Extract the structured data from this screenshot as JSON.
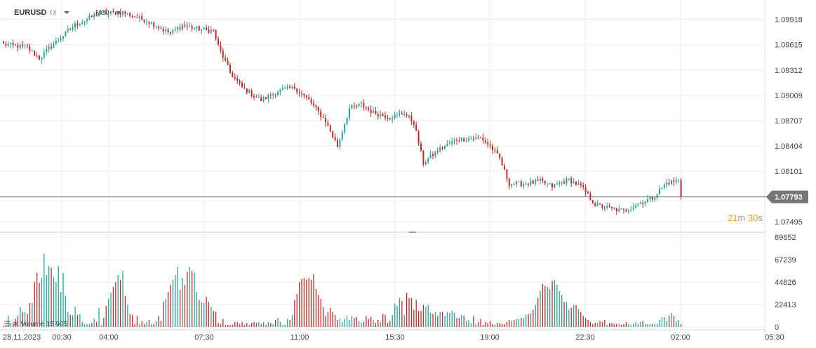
{
  "header": {
    "symbol": "EURUSD",
    "symbol_tag": "FX",
    "timeframe": "M30"
  },
  "timer": {
    "minutes": "21",
    "minutes_unit": "m",
    "seconds": "30",
    "seconds_unit": "s"
  },
  "volume_label": {
    "text": "Volume",
    "value": "15 905"
  },
  "colors": {
    "up": "#26a69a",
    "down": "#c62828",
    "grid": "#eeeeee",
    "axis": "#666666",
    "price_tag": "#777777"
  },
  "chart_data": [
    {
      "type": "candlestick",
      "title": "",
      "timeframe": "M30",
      "current_price": 1.07793,
      "y_ticks": [
        "1.09918",
        "1.09615",
        "1.09312",
        "1.09009",
        "1.08707",
        "1.08404",
        "1.08101",
        "1.07495"
      ],
      "ylim": [
        1.0737,
        1.1015
      ],
      "x_ticks": [
        "28.11.2023",
        "00:30",
        "04:00",
        "07:30",
        "11:00",
        "15:30",
        "19:00",
        "22:30",
        "02:00",
        "05:30"
      ],
      "close_path": [
        [
          0,
          1.0962
        ],
        [
          10,
          1.0958
        ],
        [
          15,
          1.0945
        ],
        [
          20,
          1.096
        ],
        [
          30,
          1.0985
        ],
        [
          40,
          1.0999
        ],
        [
          50,
          1.1
        ],
        [
          60,
          1.099
        ],
        [
          70,
          1.0975
        ],
        [
          75,
          1.0985
        ],
        [
          82,
          1.098
        ],
        [
          88,
          1.0978
        ],
        [
          90,
          1.096
        ],
        [
          95,
          1.0928
        ],
        [
          100,
          1.091
        ],
        [
          108,
          1.0895
        ],
        [
          115,
          1.0906
        ],
        [
          122,
          1.091
        ],
        [
          128,
          1.0895
        ],
        [
          135,
          1.087
        ],
        [
          140,
          1.084
        ],
        [
          145,
          1.0885
        ],
        [
          150,
          1.089
        ],
        [
          155,
          1.088
        ],
        [
          162,
          1.0875
        ],
        [
          168,
          1.088
        ],
        [
          172,
          1.0868
        ],
        [
          176,
          1.082
        ],
        [
          182,
          1.0835
        ],
        [
          190,
          1.0848
        ],
        [
          200,
          1.085
        ],
        [
          204,
          1.084
        ],
        [
          208,
          1.0825
        ],
        [
          212,
          1.0795
        ],
        [
          218,
          1.0795
        ],
        [
          225,
          1.0798
        ],
        [
          230,
          1.0792
        ],
        [
          237,
          1.08
        ],
        [
          242,
          1.0792
        ],
        [
          248,
          1.077
        ],
        [
          255,
          1.0765
        ],
        [
          260,
          1.0762
        ],
        [
          265,
          1.077
        ],
        [
          272,
          1.0778
        ],
        [
          278,
          1.0796
        ],
        [
          285,
          1.08
        ],
        [
          292,
          1.079
        ]
      ]
    },
    {
      "type": "bar",
      "title": "Volume",
      "y_ticks": [
        "89652",
        "67239",
        "44826",
        "22413",
        "0"
      ],
      "ylim": [
        0,
        89652
      ],
      "values": [
        1,
        1,
        11,
        4,
        4,
        8,
        11,
        20,
        15,
        15,
        13,
        24,
        24,
        45,
        54,
        44,
        49,
        73,
        52,
        61,
        59,
        50,
        45,
        61,
        35,
        54,
        31,
        15,
        12,
        12,
        20,
        12,
        13,
        5,
        3,
        3,
        3,
        4,
        8,
        5,
        19,
        2,
        9,
        21,
        28,
        34,
        40,
        45,
        52,
        47,
        56,
        31,
        22,
        13,
        12,
        3,
        11,
        3,
        6,
        3,
        5,
        7,
        3,
        3,
        6,
        11,
        6,
        25,
        28,
        35,
        42,
        47,
        52,
        60,
        37,
        49,
        42,
        55,
        60,
        56,
        54,
        35,
        27,
        25,
        24,
        30,
        25,
        20,
        16,
        15,
        4,
        3,
        8,
        2,
        2,
        2,
        2,
        5,
        5,
        3,
        5,
        2,
        4,
        2,
        4,
        5,
        4,
        5,
        3,
        5,
        2,
        5,
        4,
        3,
        7,
        9,
        5,
        2,
        2,
        8,
        7,
        12,
        27,
        33,
        45,
        48,
        49,
        47,
        49,
        47,
        53,
        38,
        32,
        28,
        20,
        11,
        15,
        19,
        15,
        12,
        7,
        8,
        5,
        8,
        11,
        7,
        11,
        9,
        10,
        6,
        4,
        5,
        11,
        8,
        10,
        7,
        4,
        7,
        5,
        13,
        12,
        4,
        6,
        12,
        23,
        21,
        29,
        26,
        12,
        34,
        29,
        29,
        17,
        27,
        16,
        16,
        22,
        20,
        22,
        14,
        13,
        15,
        11,
        15,
        15,
        11,
        15,
        14,
        16,
        14,
        9,
        9,
        12,
        11,
        6,
        7,
        4,
        11,
        3,
        5,
        8,
        2,
        5,
        4,
        6,
        3,
        2,
        4,
        4,
        3,
        3,
        5,
        7,
        6,
        7,
        8,
        8,
        9,
        9,
        12,
        13,
        14,
        17,
        22,
        29,
        36,
        43,
        41,
        40,
        38,
        46,
        47,
        42,
        36,
        32,
        25,
        25,
        17,
        19,
        22,
        22,
        18,
        15,
        11,
        9,
        7,
        5,
        3,
        4,
        4,
        6,
        5,
        7,
        2,
        4,
        4,
        3,
        3,
        3,
        2,
        3,
        5,
        3,
        2,
        3,
        5,
        3,
        5,
        6,
        3,
        3,
        3,
        3,
        3,
        3,
        7,
        10,
        10,
        6,
        11,
        14,
        11,
        6,
        7,
        3
      ]
    }
  ]
}
